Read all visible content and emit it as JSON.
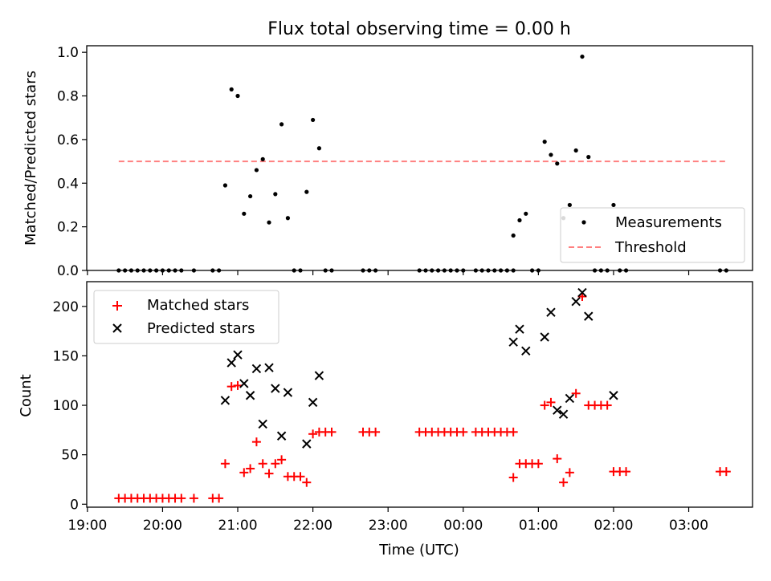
{
  "chart_data": [
    {
      "type": "scatter",
      "title": "Flux total observing time = 0.00 h",
      "xlabel": "",
      "ylabel": "Matched/Predicted stars",
      "ylim": [
        0,
        1.03
      ],
      "yticks": [
        0.0,
        0.2,
        0.4,
        0.6,
        0.8,
        1.0
      ],
      "ytick_labels": [
        "0.0",
        "0.2",
        "0.4",
        "0.6",
        "0.8",
        "1.0"
      ],
      "legend_position": "lower-right",
      "legend": [
        "Measurements",
        "Threshold"
      ],
      "threshold": {
        "value": 0.5,
        "x_start": "19:25",
        "x_end": "03:30",
        "color": "#ff8080"
      },
      "series": [
        {
          "name": "Measurements",
          "marker": "dot",
          "color": "#000000",
          "points": [
            [
              "19:25",
              0
            ],
            [
              "19:30",
              0
            ],
            [
              "19:35",
              0
            ],
            [
              "19:40",
              0
            ],
            [
              "19:45",
              0
            ],
            [
              "19:50",
              0
            ],
            [
              "19:55",
              0
            ],
            [
              "20:00",
              0
            ],
            [
              "20:05",
              0
            ],
            [
              "20:10",
              0
            ],
            [
              "20:15",
              0
            ],
            [
              "20:25",
              0
            ],
            [
              "20:40",
              0
            ],
            [
              "20:45",
              0
            ],
            [
              "20:50",
              0.39
            ],
            [
              "20:55",
              0.83
            ],
            [
              "21:00",
              0.8
            ],
            [
              "21:05",
              0.26
            ],
            [
              "21:10",
              0.34
            ],
            [
              "21:15",
              0.46
            ],
            [
              "21:20",
              0.51
            ],
            [
              "21:25",
              0.22
            ],
            [
              "21:30",
              0.35
            ],
            [
              "21:35",
              0.67
            ],
            [
              "21:40",
              0.24
            ],
            [
              "21:45",
              0
            ],
            [
              "21:50",
              0
            ],
            [
              "21:55",
              0.36
            ],
            [
              "22:00",
              0.69
            ],
            [
              "22:05",
              0.56
            ],
            [
              "22:10",
              0
            ],
            [
              "22:15",
              0
            ],
            [
              "22:40",
              0
            ],
            [
              "22:45",
              0
            ],
            [
              "22:50",
              0
            ],
            [
              "23:25",
              0
            ],
            [
              "23:30",
              0
            ],
            [
              "23:35",
              0
            ],
            [
              "23:40",
              0
            ],
            [
              "23:45",
              0
            ],
            [
              "23:50",
              0
            ],
            [
              "23:55",
              0
            ],
            [
              "00:00",
              0
            ],
            [
              "00:10",
              0
            ],
            [
              "00:15",
              0
            ],
            [
              "00:20",
              0
            ],
            [
              "00:25",
              0
            ],
            [
              "00:30",
              0
            ],
            [
              "00:35",
              0
            ],
            [
              "00:40",
              0
            ],
            [
              "00:40",
              0.16
            ],
            [
              "00:45",
              0.23
            ],
            [
              "00:50",
              0.26
            ],
            [
              "00:55",
              0
            ],
            [
              "01:00",
              0
            ],
            [
              "01:05",
              0.59
            ],
            [
              "01:10",
              0.53
            ],
            [
              "01:15",
              0.49
            ],
            [
              "01:20",
              0.24
            ],
            [
              "01:25",
              0.3
            ],
            [
              "01:30",
              0.55
            ],
            [
              "01:35",
              0.98
            ],
            [
              "01:40",
              0.52
            ],
            [
              "01:45",
              0
            ],
            [
              "01:50",
              0
            ],
            [
              "01:55",
              0
            ],
            [
              "02:00",
              0.3
            ],
            [
              "02:05",
              0
            ],
            [
              "02:10",
              0
            ],
            [
              "03:25",
              0
            ],
            [
              "03:30",
              0
            ]
          ]
        }
      ]
    },
    {
      "type": "scatter",
      "title": "",
      "xlabel": "Time (UTC)",
      "ylabel": "Count",
      "ylim": [
        -3,
        225
      ],
      "yticks": [
        0,
        50,
        100,
        150,
        200
      ],
      "ytick_labels": [
        "0",
        "50",
        "100",
        "150",
        "200"
      ],
      "xtick_labels": [
        "19:00",
        "20:00",
        "21:00",
        "22:00",
        "23:00",
        "00:00",
        "01:00",
        "02:00",
        "03:00"
      ],
      "legend_position": "upper-left",
      "legend": [
        "Matched stars",
        "Predicted stars"
      ],
      "series": [
        {
          "name": "Matched stars",
          "marker": "plus",
          "color": "#ff0000",
          "points": [
            [
              "19:25",
              6
            ],
            [
              "19:30",
              6
            ],
            [
              "19:35",
              6
            ],
            [
              "19:40",
              6
            ],
            [
              "19:45",
              6
            ],
            [
              "19:50",
              6
            ],
            [
              "19:55",
              6
            ],
            [
              "20:00",
              6
            ],
            [
              "20:05",
              6
            ],
            [
              "20:10",
              6
            ],
            [
              "20:15",
              6
            ],
            [
              "20:25",
              6
            ],
            [
              "20:40",
              6
            ],
            [
              "20:45",
              6
            ],
            [
              "20:50",
              41
            ],
            [
              "20:55",
              119
            ],
            [
              "21:00",
              120
            ],
            [
              "21:05",
              32
            ],
            [
              "21:10",
              36
            ],
            [
              "21:15",
              63
            ],
            [
              "21:20",
              41
            ],
            [
              "21:25",
              31
            ],
            [
              "21:30",
              41
            ],
            [
              "21:35",
              45
            ],
            [
              "21:40",
              28
            ],
            [
              "21:45",
              28
            ],
            [
              "21:50",
              28
            ],
            [
              "21:55",
              22
            ],
            [
              "22:00",
              71
            ],
            [
              "22:05",
              73
            ],
            [
              "22:10",
              73
            ],
            [
              "22:15",
              73
            ],
            [
              "22:40",
              73
            ],
            [
              "22:45",
              73
            ],
            [
              "22:50",
              73
            ],
            [
              "23:25",
              73
            ],
            [
              "23:30",
              73
            ],
            [
              "23:35",
              73
            ],
            [
              "23:40",
              73
            ],
            [
              "23:45",
              73
            ],
            [
              "23:50",
              73
            ],
            [
              "23:55",
              73
            ],
            [
              "00:00",
              73
            ],
            [
              "00:10",
              73
            ],
            [
              "00:15",
              73
            ],
            [
              "00:20",
              73
            ],
            [
              "00:25",
              73
            ],
            [
              "00:30",
              73
            ],
            [
              "00:35",
              73
            ],
            [
              "00:40",
              73
            ],
            [
              "00:40",
              27
            ],
            [
              "00:45",
              41
            ],
            [
              "00:50",
              41
            ],
            [
              "00:55",
              41
            ],
            [
              "01:00",
              41
            ],
            [
              "01:05",
              100
            ],
            [
              "01:10",
              103
            ],
            [
              "01:15",
              46
            ],
            [
              "01:20",
              22
            ],
            [
              "01:25",
              32
            ],
            [
              "01:30",
              112
            ],
            [
              "01:35",
              210
            ],
            [
              "01:40",
              100
            ],
            [
              "01:45",
              100
            ],
            [
              "01:50",
              100
            ],
            [
              "01:55",
              100
            ],
            [
              "02:00",
              33
            ],
            [
              "02:05",
              33
            ],
            [
              "02:10",
              33
            ],
            [
              "03:25",
              33
            ],
            [
              "03:30",
              33
            ]
          ]
        },
        {
          "name": "Predicted stars",
          "marker": "x",
          "color": "#000000",
          "points": [
            [
              "20:50",
              105
            ],
            [
              "20:55",
              143
            ],
            [
              "21:00",
              151
            ],
            [
              "21:05",
              122
            ],
            [
              "21:10",
              110
            ],
            [
              "21:15",
              137
            ],
            [
              "21:20",
              81
            ],
            [
              "21:25",
              138
            ],
            [
              "21:30",
              117
            ],
            [
              "21:35",
              69
            ],
            [
              "21:40",
              113
            ],
            [
              "21:55",
              61
            ],
            [
              "22:00",
              103
            ],
            [
              "22:05",
              130
            ],
            [
              "00:40",
              164
            ],
            [
              "00:45",
              177
            ],
            [
              "00:50",
              155
            ],
            [
              "01:05",
              169
            ],
            [
              "01:10",
              194
            ],
            [
              "01:15",
              95
            ],
            [
              "01:20",
              91
            ],
            [
              "01:25",
              107
            ],
            [
              "01:30",
              205
            ],
            [
              "01:35",
              214
            ],
            [
              "01:40",
              190
            ],
            [
              "02:00",
              110
            ]
          ]
        }
      ]
    }
  ]
}
